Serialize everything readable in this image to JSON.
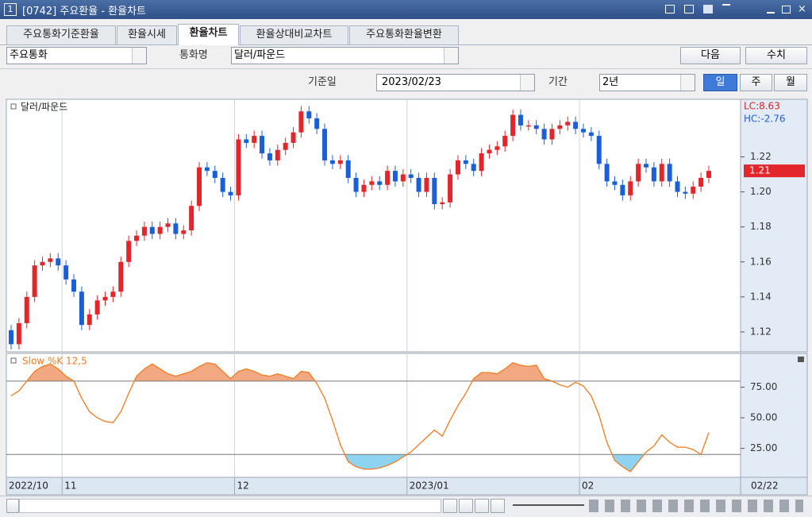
{
  "window": {
    "number": "1",
    "title": "[0742] 주요환율 - 환율차트"
  },
  "tabs": [
    "주요통화기준환율",
    "환율시세",
    "환율차트",
    "환율상대비교차트",
    "주요통화환율변환"
  ],
  "active_tab": 2,
  "controls": {
    "currency_group": "주요통화",
    "currency_name_label": "통화명",
    "currency_name": "달러/파운드",
    "next_button": "다음",
    "value_button": "수치",
    "base_date_label": "기준일",
    "base_date": "2023/02/23",
    "period_label": "기간",
    "period": "2년",
    "period_buttons": [
      "일",
      "주",
      "월"
    ],
    "active_period": 0
  },
  "chart_data": [
    {
      "type": "candlestick",
      "title": "달러/파운드",
      "categories": [
        "2022/10",
        null,
        null,
        null,
        null,
        null,
        null,
        "11",
        null,
        null,
        null,
        null,
        null,
        null,
        null,
        null,
        null,
        null,
        null,
        null,
        null,
        null,
        null,
        null,
        null,
        null,
        null,
        null,
        null,
        "12",
        null,
        null,
        null,
        null,
        null,
        null,
        null,
        null,
        null,
        null,
        null,
        null,
        null,
        null,
        null,
        null,
        null,
        null,
        null,
        null,
        null,
        "2023/01",
        null,
        null,
        null,
        null,
        null,
        null,
        null,
        null,
        null,
        null,
        null,
        null,
        null,
        null,
        null,
        null,
        null,
        null,
        null,
        null,
        null,
        "02",
        null,
        null,
        null,
        null,
        null,
        null,
        null,
        null,
        null,
        null,
        null,
        null,
        null,
        null,
        null,
        null
      ],
      "open": [
        1.121,
        1.113,
        1.125,
        1.14,
        1.158,
        1.16,
        1.162,
        1.158,
        1.15,
        1.143,
        1.124,
        1.13,
        1.138,
        1.14,
        1.143,
        1.16,
        1.172,
        1.175,
        1.18,
        1.176,
        1.18,
        1.182,
        1.176,
        1.178,
        1.192,
        1.214,
        1.212,
        1.208,
        1.2,
        1.198,
        1.23,
        1.228,
        1.232,
        1.222,
        1.218,
        1.224,
        1.228,
        1.234,
        1.246,
        1.242,
        1.236,
        1.218,
        1.216,
        1.218,
        1.208,
        1.2,
        1.204,
        1.206,
        1.204,
        1.212,
        1.206,
        1.21,
        1.208,
        1.2,
        1.208,
        1.193,
        1.194,
        1.21,
        1.218,
        1.216,
        1.212,
        1.222,
        1.224,
        1.226,
        1.232,
        1.244,
        1.238,
        1.238,
        1.236,
        1.23,
        1.236,
        1.238,
        1.24,
        1.236,
        1.234,
        1.232,
        1.216,
        1.206,
        1.204,
        1.198,
        1.206,
        1.216,
        1.214,
        1.206,
        1.216,
        1.206,
        1.2,
        1.199,
        1.203,
        1.208
      ],
      "high": [
        1.124,
        1.128,
        1.143,
        1.161,
        1.163,
        1.165,
        1.165,
        1.161,
        1.153,
        1.146,
        1.133,
        1.141,
        1.143,
        1.146,
        1.163,
        1.175,
        1.178,
        1.183,
        1.183,
        1.183,
        1.185,
        1.185,
        1.181,
        1.195,
        1.217,
        1.217,
        1.215,
        1.211,
        1.203,
        1.233,
        1.233,
        1.235,
        1.235,
        1.225,
        1.227,
        1.231,
        1.237,
        1.249,
        1.249,
        1.245,
        1.239,
        1.221,
        1.221,
        1.221,
        1.211,
        1.207,
        1.209,
        1.209,
        1.215,
        1.215,
        1.213,
        1.213,
        1.211,
        1.211,
        1.211,
        1.197,
        1.213,
        1.221,
        1.221,
        1.219,
        1.225,
        1.227,
        1.229,
        1.235,
        1.247,
        1.247,
        1.241,
        1.241,
        1.239,
        1.239,
        1.241,
        1.243,
        1.243,
        1.239,
        1.237,
        1.235,
        1.219,
        1.209,
        1.207,
        1.209,
        1.219,
        1.219,
        1.217,
        1.219,
        1.219,
        1.209,
        1.203,
        1.206,
        1.211,
        1.215
      ],
      "low": [
        1.11,
        1.11,
        1.122,
        1.137,
        1.155,
        1.157,
        1.155,
        1.147,
        1.14,
        1.121,
        1.121,
        1.127,
        1.135,
        1.137,
        1.14,
        1.157,
        1.169,
        1.172,
        1.173,
        1.173,
        1.177,
        1.173,
        1.173,
        1.175,
        1.189,
        1.209,
        1.205,
        1.197,
        1.195,
        1.195,
        1.225,
        1.225,
        1.219,
        1.215,
        1.215,
        1.221,
        1.225,
        1.231,
        1.239,
        1.233,
        1.215,
        1.213,
        1.213,
        1.205,
        1.197,
        1.197,
        1.201,
        1.201,
        1.201,
        1.203,
        1.203,
        1.205,
        1.197,
        1.197,
        1.19,
        1.19,
        1.191,
        1.207,
        1.213,
        1.209,
        1.209,
        1.219,
        1.221,
        1.223,
        1.229,
        1.235,
        1.235,
        1.233,
        1.227,
        1.227,
        1.233,
        1.235,
        1.233,
        1.231,
        1.229,
        1.213,
        1.203,
        1.201,
        1.195,
        1.195,
        1.203,
        1.211,
        1.203,
        1.203,
        1.203,
        1.197,
        1.196,
        1.196,
        1.2,
        1.205
      ],
      "close": [
        1.113,
        1.125,
        1.14,
        1.158,
        1.16,
        1.162,
        1.158,
        1.15,
        1.143,
        1.124,
        1.13,
        1.138,
        1.14,
        1.143,
        1.16,
        1.172,
        1.175,
        1.18,
        1.176,
        1.18,
        1.182,
        1.176,
        1.178,
        1.192,
        1.214,
        1.212,
        1.208,
        1.2,
        1.198,
        1.23,
        1.228,
        1.232,
        1.222,
        1.218,
        1.224,
        1.228,
        1.234,
        1.246,
        1.242,
        1.236,
        1.218,
        1.216,
        1.218,
        1.208,
        1.2,
        1.204,
        1.206,
        1.204,
        1.212,
        1.206,
        1.21,
        1.208,
        1.2,
        1.208,
        1.193,
        1.194,
        1.21,
        1.218,
        1.216,
        1.212,
        1.222,
        1.224,
        1.226,
        1.232,
        1.244,
        1.238,
        1.238,
        1.236,
        1.23,
        1.236,
        1.238,
        1.24,
        1.236,
        1.234,
        1.232,
        1.216,
        1.206,
        1.204,
        1.198,
        1.206,
        1.216,
        1.214,
        1.206,
        1.216,
        1.206,
        1.2,
        1.199,
        1.203,
        1.208,
        1.212
      ],
      "up_color": "#e2262c",
      "down_color": "#1b5fd8",
      "ylim": [
        1.11,
        1.252
      ],
      "yticks": [
        1.12,
        1.14,
        1.16,
        1.18,
        {
          "value": 1.2,
          "label": "1.20"
        },
        1.22
      ],
      "lc_label": "LC:8.63",
      "hc_label": "HC:-2.76",
      "last_price_label": "1.21",
      "latest_date_label": "02/22",
      "grid": true
    },
    {
      "type": "line",
      "title": "Slow %K 12,5",
      "color": "#f07c22",
      "values": [
        68,
        72,
        80,
        88,
        92,
        94,
        90,
        84,
        80,
        66,
        55,
        50,
        47,
        46,
        55,
        70,
        84,
        90,
        94,
        90,
        86,
        84,
        86,
        88,
        92,
        95,
        94,
        88,
        82,
        88,
        90,
        88,
        85,
        84,
        86,
        84,
        82,
        88,
        87,
        78,
        66,
        48,
        28,
        14,
        10,
        8,
        8,
        9,
        11,
        14,
        18,
        22,
        28,
        34,
        40,
        35,
        48,
        60,
        70,
        82,
        87,
        87,
        86,
        90,
        95,
        93,
        92,
        93,
        82,
        80,
        77,
        75,
        79,
        76,
        68,
        52,
        30,
        15,
        10,
        6,
        14,
        22,
        27,
        36,
        30,
        26,
        26,
        24,
        20,
        38
      ],
      "ylim": [
        2,
        102
      ],
      "yticks": [
        {
          "value": 25,
          "label": "25.00"
        },
        {
          "value": 50,
          "label": "50.00"
        },
        {
          "value": 75,
          "label": "75.00"
        }
      ],
      "levels": [
        20,
        80
      ],
      "upper_fill": "#f2a982",
      "lower_fill": "#8fd3f2"
    }
  ]
}
